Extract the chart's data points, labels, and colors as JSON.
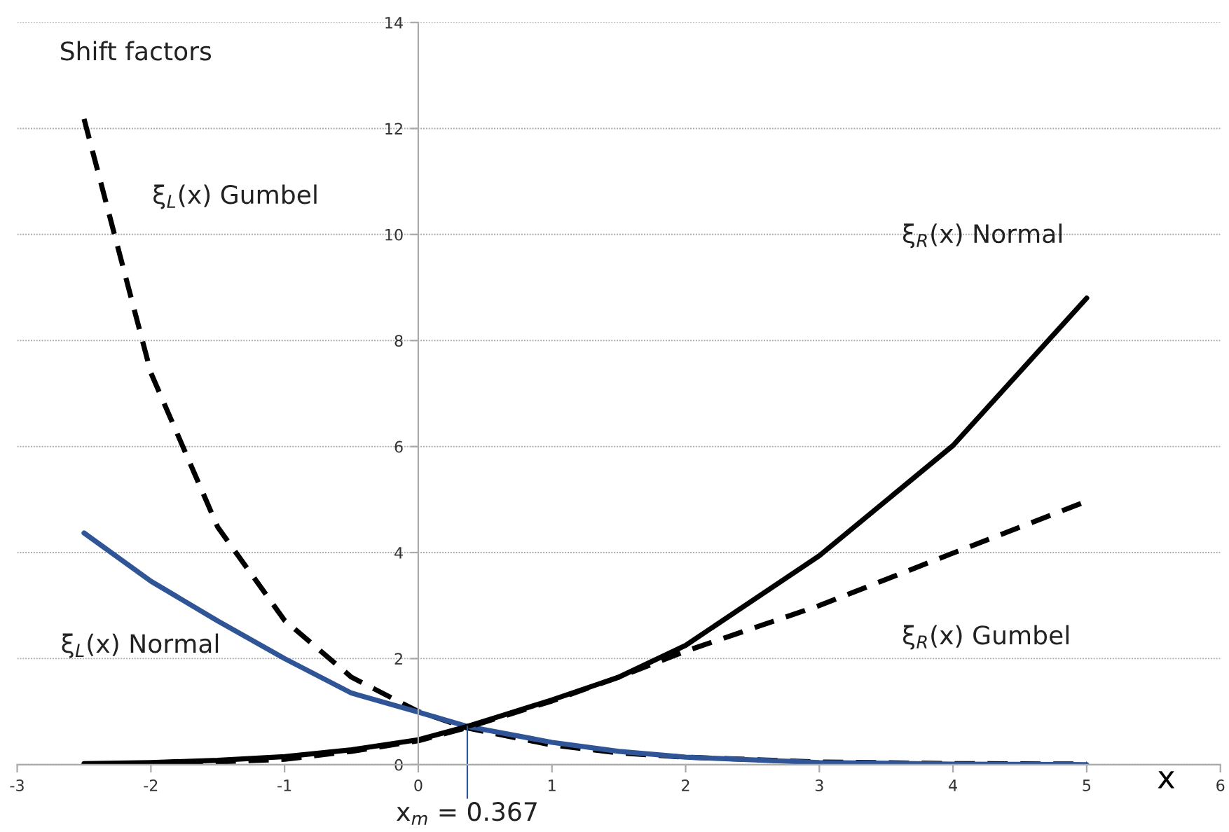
{
  "chart_data": {
    "type": "line",
    "title": "Shift factors",
    "xlabel": "x",
    "x": [
      -2.5,
      -2,
      -1.5,
      -1,
      -0.5,
      0,
      0.367,
      1,
      1.5,
      2,
      3,
      4,
      5
    ],
    "series": [
      {
        "name": "ξ$_{L}$(x) Gumbel",
        "color": "#000000",
        "line_style": "dashed",
        "values": [
          12.18,
          7.39,
          4.48,
          2.72,
          1.65,
          1.0,
          0.69,
          0.37,
          0.22,
          0.14,
          0.05,
          0.02,
          0.01
        ]
      },
      {
        "name": "ξ$_{L}$(x) Normal",
        "color": "#2f5597",
        "line_style": "solid",
        "values": [
          4.37,
          3.46,
          2.71,
          2.0,
          1.35,
          0.99,
          0.72,
          0.42,
          0.25,
          0.14,
          0.04,
          0.01,
          0.0
        ]
      },
      {
        "name": "ξ$_{R}$(x) Normal",
        "color": "#000000",
        "line_style": "solid",
        "values": [
          0.02,
          0.04,
          0.08,
          0.15,
          0.28,
          0.47,
          0.72,
          1.22,
          1.65,
          2.25,
          3.94,
          6.02,
          8.8
        ]
      },
      {
        "name": "ξ$_{R}$(x) Gumbel",
        "color": "#000000",
        "line_style": "dashed",
        "values": [
          0.01,
          0.02,
          0.05,
          0.1,
          0.25,
          0.45,
          0.7,
          1.2,
          1.65,
          2.14,
          3.0,
          3.99,
          4.97
        ]
      }
    ],
    "ref_lines": [
      {
        "axis": "x",
        "value": 0.367,
        "label": "x$_{m}$ = 0.367",
        "color": "#2f5597"
      }
    ],
    "xlim": [
      -3,
      6
    ],
    "ylim": [
      0,
      14
    ],
    "xticks": [
      -3,
      -2,
      -1,
      0,
      1,
      2,
      3,
      4,
      5,
      6
    ],
    "yticks": [
      0,
      2,
      4,
      6,
      8,
      10,
      12,
      14
    ],
    "grid": "y",
    "marker": "none",
    "legend": false
  }
}
